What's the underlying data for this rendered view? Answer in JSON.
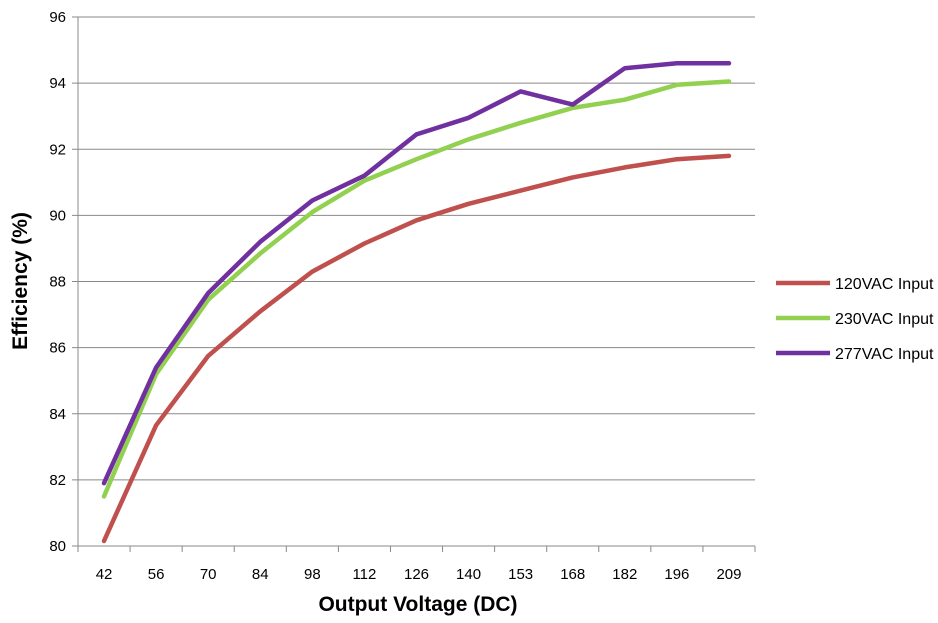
{
  "chart_data": {
    "type": "line",
    "xlabel": "Output Voltage (DC)",
    "ylabel": "Efficiency (%)",
    "categories": [
      "42",
      "56",
      "70",
      "84",
      "98",
      "112",
      "126",
      "140",
      "153",
      "168",
      "182",
      "196",
      "209"
    ],
    "ylim": [
      80,
      96
    ],
    "yticks": [
      80,
      82,
      84,
      86,
      88,
      90,
      92,
      94,
      96
    ],
    "grid": "horizontal",
    "legend_position": "right",
    "series": [
      {
        "name": "120VAC Input",
        "color": "#c0504d",
        "values": [
          80.15,
          83.65,
          85.75,
          87.1,
          88.3,
          89.15,
          89.85,
          90.35,
          90.75,
          91.15,
          91.45,
          91.7,
          91.8
        ]
      },
      {
        "name": "230VAC Input",
        "color": "#92d050",
        "values": [
          81.5,
          85.2,
          87.45,
          88.85,
          90.1,
          91.05,
          91.7,
          92.3,
          92.8,
          93.25,
          93.5,
          93.95,
          94.05
        ]
      },
      {
        "name": "277VAC Input",
        "color": "#7030a0",
        "values": [
          81.9,
          85.4,
          87.65,
          89.2,
          90.45,
          91.2,
          92.45,
          92.95,
          93.75,
          93.35,
          94.45,
          94.6,
          94.6
        ]
      }
    ]
  }
}
